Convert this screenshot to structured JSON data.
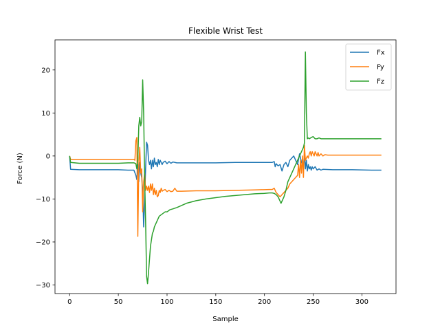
{
  "chart_data": {
    "type": "line",
    "title": "Flexible Wrist Test",
    "xlabel": "Sample",
    "ylabel": "Force (N)",
    "xlim": [
      -15,
      335
    ],
    "ylim": [
      -32,
      27
    ],
    "xticks": [
      0,
      50,
      100,
      150,
      200,
      250,
      300
    ],
    "yticks": [
      -30,
      -20,
      -10,
      0,
      10,
      20
    ],
    "grid": false,
    "legend_position": "top-right",
    "series": [
      {
        "name": "Fx",
        "color": "#1f77b4",
        "points": [
          [
            0,
            0
          ],
          [
            1,
            -3.1
          ],
          [
            10,
            -3.2
          ],
          [
            30,
            -3.2
          ],
          [
            50,
            -3.2
          ],
          [
            60,
            -3.3
          ],
          [
            66,
            -3.3
          ],
          [
            68,
            -4.5
          ],
          [
            69,
            -5.5
          ],
          [
            70,
            -2
          ],
          [
            71,
            -6
          ],
          [
            72,
            -1.5
          ],
          [
            73,
            -4
          ],
          [
            74,
            -5
          ],
          [
            75,
            -8
          ],
          [
            76,
            -16.5
          ],
          [
            77,
            -10
          ],
          [
            78,
            -3
          ],
          [
            79,
            3.2
          ],
          [
            80,
            2.5
          ],
          [
            81,
            -1
          ],
          [
            82,
            -2
          ],
          [
            83,
            -1
          ],
          [
            84,
            -3
          ],
          [
            85,
            -1
          ],
          [
            86,
            -2.5
          ],
          [
            87,
            -0.5
          ],
          [
            88,
            -2
          ],
          [
            89,
            -1.5
          ],
          [
            90,
            -2.5
          ],
          [
            91,
            -0.8
          ],
          [
            92,
            -2
          ],
          [
            93,
            -1
          ],
          [
            95,
            -2
          ],
          [
            96,
            -1.5
          ],
          [
            98,
            -1.2
          ],
          [
            100,
            -1.8
          ],
          [
            102,
            -1.3
          ],
          [
            104,
            -1.7
          ],
          [
            106,
            -1.4
          ],
          [
            110,
            -1.6
          ],
          [
            130,
            -1.6
          ],
          [
            150,
            -1.6
          ],
          [
            170,
            -1.5
          ],
          [
            190,
            -1.5
          ],
          [
            208,
            -1.5
          ],
          [
            210,
            -1.3
          ],
          [
            211,
            -2.5
          ],
          [
            212,
            -1.8
          ],
          [
            214,
            -2.3
          ],
          [
            216,
            -2
          ],
          [
            218,
            -3.5
          ],
          [
            220,
            -2
          ],
          [
            222,
            -1.5
          ],
          [
            224,
            -2.5
          ],
          [
            226,
            -1
          ],
          [
            228,
            -0.5
          ],
          [
            230,
            0
          ],
          [
            232,
            -1
          ],
          [
            234,
            -2
          ],
          [
            236,
            0.5
          ],
          [
            238,
            -1.5
          ],
          [
            240,
            -2.5
          ],
          [
            241,
            0.5
          ],
          [
            242,
            -3
          ],
          [
            243,
            -1
          ],
          [
            244,
            -3.5
          ],
          [
            245,
            -2
          ],
          [
            246,
            -3
          ],
          [
            247,
            -2.5
          ],
          [
            248,
            -3.3
          ],
          [
            249,
            -2.5
          ],
          [
            250,
            -3
          ],
          [
            252,
            -2.5
          ],
          [
            254,
            -3.3
          ],
          [
            256,
            -3
          ],
          [
            258,
            -3.3
          ],
          [
            260,
            -3.1
          ],
          [
            270,
            -3.2
          ],
          [
            290,
            -3.2
          ],
          [
            310,
            -3.3
          ],
          [
            320,
            -3.3
          ]
        ]
      },
      {
        "name": "Fy",
        "color": "#ff7f0e",
        "points": [
          [
            0,
            0
          ],
          [
            1,
            -0.8
          ],
          [
            10,
            -0.8
          ],
          [
            30,
            -0.8
          ],
          [
            50,
            -0.8
          ],
          [
            60,
            -0.8
          ],
          [
            66,
            -0.8
          ],
          [
            67,
            -1
          ],
          [
            68,
            3.5
          ],
          [
            69,
            4.3
          ],
          [
            70,
            -18.7
          ],
          [
            71,
            -2
          ],
          [
            72,
            2
          ],
          [
            73,
            -4
          ],
          [
            74,
            -3
          ],
          [
            75,
            -13
          ],
          [
            76,
            -6
          ],
          [
            77,
            -4
          ],
          [
            78,
            -8
          ],
          [
            79,
            -7
          ],
          [
            80,
            -8
          ],
          [
            81,
            -7
          ],
          [
            82,
            -8.5
          ],
          [
            83,
            -6.5
          ],
          [
            84,
            -8
          ],
          [
            85,
            -6.5
          ],
          [
            86,
            -9
          ],
          [
            87,
            -7.5
          ],
          [
            88,
            -9
          ],
          [
            89,
            -8
          ],
          [
            90,
            -9.5
          ],
          [
            91,
            -9.2
          ],
          [
            92,
            -8
          ],
          [
            93,
            -8.5
          ],
          [
            94,
            -7.5
          ],
          [
            95,
            -8.2
          ],
          [
            96,
            -8
          ],
          [
            98,
            -7.8
          ],
          [
            100,
            -8.3
          ],
          [
            102,
            -8
          ],
          [
            104,
            -8.3
          ],
          [
            106,
            -8.2
          ],
          [
            108,
            -7.5
          ],
          [
            110,
            -8.2
          ],
          [
            115,
            -8.2
          ],
          [
            130,
            -8.1
          ],
          [
            150,
            -8.1
          ],
          [
            170,
            -8
          ],
          [
            190,
            -7.9
          ],
          [
            205,
            -7.8
          ],
          [
            208,
            -7.8
          ],
          [
            210,
            -7.5
          ],
          [
            212,
            -8.5
          ],
          [
            214,
            -9
          ],
          [
            216,
            -9.5
          ],
          [
            218,
            -9
          ],
          [
            220,
            -8.5
          ],
          [
            222,
            -8
          ],
          [
            224,
            -7.5
          ],
          [
            226,
            -6.5
          ],
          [
            228,
            -6
          ],
          [
            230,
            -5.5
          ],
          [
            232,
            -5
          ],
          [
            234,
            -4.5
          ],
          [
            235,
            -2
          ],
          [
            236,
            -5
          ],
          [
            237,
            -1
          ],
          [
            238,
            -4
          ],
          [
            239,
            0
          ],
          [
            240,
            -5
          ],
          [
            241,
            2.5
          ],
          [
            242,
            -1
          ],
          [
            243,
            -0.5
          ],
          [
            244,
            0
          ],
          [
            245,
            -0.5
          ],
          [
            246,
            0.5
          ],
          [
            247,
            1
          ],
          [
            248,
            0
          ],
          [
            249,
            1
          ],
          [
            250,
            0.5
          ],
          [
            251,
            0
          ],
          [
            252,
            1
          ],
          [
            253,
            0.5
          ],
          [
            254,
            0
          ],
          [
            255,
            0.8
          ],
          [
            256,
            0
          ],
          [
            258,
            0.5
          ],
          [
            260,
            0
          ],
          [
            262,
            0.3
          ],
          [
            265,
            0.2
          ],
          [
            280,
            0.2
          ],
          [
            300,
            0.2
          ],
          [
            320,
            0.2
          ]
        ]
      },
      {
        "name": "Fz",
        "color": "#2ca02c",
        "points": [
          [
            0,
            0
          ],
          [
            1,
            -1.5
          ],
          [
            10,
            -1.7
          ],
          [
            30,
            -1.7
          ],
          [
            50,
            -1.7
          ],
          [
            60,
            -1.6
          ],
          [
            66,
            -1.6
          ],
          [
            68,
            -1.8
          ],
          [
            69,
            -3
          ],
          [
            70,
            -1
          ],
          [
            71,
            7
          ],
          [
            72,
            9
          ],
          [
            73,
            7
          ],
          [
            74,
            8
          ],
          [
            75,
            17.7
          ],
          [
            76,
            10
          ],
          [
            77,
            -5
          ],
          [
            78,
            -15
          ],
          [
            79,
            -28
          ],
          [
            80,
            -29.7
          ],
          [
            81,
            -27
          ],
          [
            82,
            -24
          ],
          [
            83,
            -21
          ],
          [
            84,
            -19.5
          ],
          [
            85,
            -18
          ],
          [
            86,
            -17.5
          ],
          [
            87,
            -16.5
          ],
          [
            88,
            -16
          ],
          [
            90,
            -15
          ],
          [
            92,
            -14
          ],
          [
            95,
            -13.5
          ],
          [
            98,
            -13
          ],
          [
            100,
            -13
          ],
          [
            103,
            -12.5
          ],
          [
            106,
            -12.3
          ],
          [
            110,
            -12
          ],
          [
            115,
            -11.5
          ],
          [
            120,
            -11
          ],
          [
            125,
            -10.7
          ],
          [
            130,
            -10.4
          ],
          [
            140,
            -10
          ],
          [
            150,
            -9.7
          ],
          [
            160,
            -9.4
          ],
          [
            170,
            -9.2
          ],
          [
            180,
            -9
          ],
          [
            190,
            -8.8
          ],
          [
            200,
            -8.7
          ],
          [
            205,
            -8.6
          ],
          [
            208,
            -8.6
          ],
          [
            210,
            -8.7
          ],
          [
            212,
            -9
          ],
          [
            214,
            -9.5
          ],
          [
            216,
            -10.5
          ],
          [
            217,
            -11
          ],
          [
            218,
            -10.5
          ],
          [
            220,
            -9.5
          ],
          [
            222,
            -8
          ],
          [
            224,
            -6
          ],
          [
            226,
            -5
          ],
          [
            228,
            -4
          ],
          [
            230,
            -3
          ],
          [
            232,
            -2
          ],
          [
            234,
            -1
          ],
          [
            236,
            0
          ],
          [
            238,
            1
          ],
          [
            240,
            2
          ],
          [
            241,
            3
          ],
          [
            242,
            24.2
          ],
          [
            243,
            10
          ],
          [
            244,
            4
          ],
          [
            245,
            4.2
          ],
          [
            246,
            4
          ],
          [
            248,
            4.3
          ],
          [
            250,
            4.5
          ],
          [
            252,
            4
          ],
          [
            254,
            4
          ],
          [
            256,
            4.2
          ],
          [
            258,
            4
          ],
          [
            260,
            4
          ],
          [
            270,
            4
          ],
          [
            280,
            4
          ],
          [
            300,
            4
          ],
          [
            320,
            4
          ]
        ]
      }
    ]
  }
}
